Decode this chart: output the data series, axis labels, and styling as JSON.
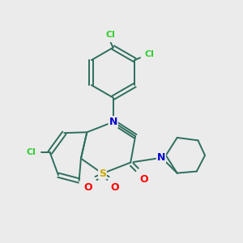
{
  "bg_color": "#ebebeb",
  "bond_color": "#2d6e5e",
  "atom_colors": {
    "Cl": "#32cd32",
    "N": "#0000cc",
    "S": "#ccaa00",
    "O": "#ff0000",
    "C": "#2d6e5e"
  },
  "lw": 1.4
}
